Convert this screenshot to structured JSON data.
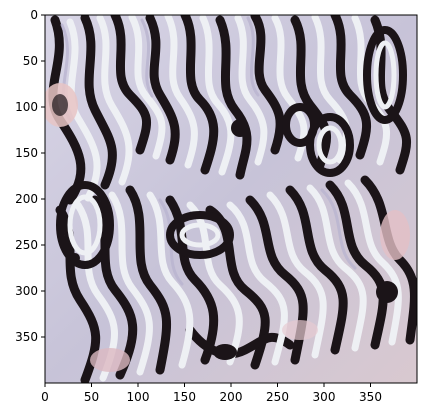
{
  "image": {
    "description_tag": "psychedelic-swirl-image",
    "palette": {
      "dark": "#1b1418",
      "light": "#eef0f4",
      "lavender": "#c9c6dc",
      "pink": "#e8c4c4",
      "mid_gray": "#8f8a98"
    }
  },
  "axes": {
    "x_range": [
      0,
      400
    ],
    "y_range": [
      0,
      400
    ],
    "y_inverted": true,
    "x_ticks": [
      {
        "value": 0,
        "label": "0"
      },
      {
        "value": 50,
        "label": "50"
      },
      {
        "value": 100,
        "label": "100"
      },
      {
        "value": 150,
        "label": "150"
      },
      {
        "value": 200,
        "label": "200"
      },
      {
        "value": 250,
        "label": "250"
      },
      {
        "value": 300,
        "label": "300"
      },
      {
        "value": 350,
        "label": "350"
      }
    ],
    "y_ticks": [
      {
        "value": 0,
        "label": "0"
      },
      {
        "value": 50,
        "label": "50"
      },
      {
        "value": 100,
        "label": "100"
      },
      {
        "value": 150,
        "label": "150"
      },
      {
        "value": 200,
        "label": "200"
      },
      {
        "value": 250,
        "label": "250"
      },
      {
        "value": 300,
        "label": "300"
      },
      {
        "value": 350,
        "label": "350"
      }
    ]
  }
}
